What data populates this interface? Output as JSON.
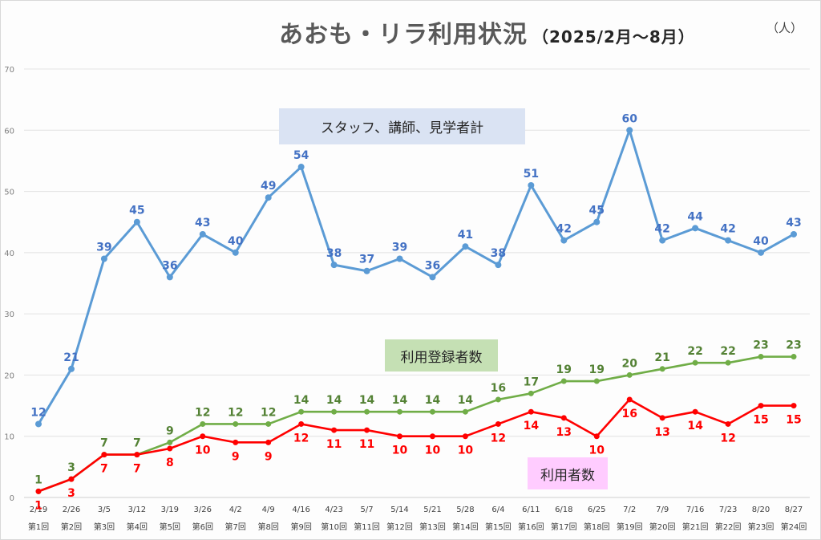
{
  "chart_data": {
    "type": "line",
    "title": "あおも・リラ利用状況",
    "subtitle": "（2025/2月～8月）",
    "unit_label": "（人）",
    "xlabel": "",
    "ylabel": "",
    "ylim": [
      0,
      70
    ],
    "yticks": [
      0,
      10,
      20,
      30,
      40,
      50,
      60,
      70
    ],
    "grid": true,
    "categories": [
      "2/19",
      "2/26",
      "3/5",
      "3/12",
      "3/19",
      "3/26",
      "4/2",
      "4/9",
      "4/16",
      "4/23",
      "5/7",
      "5/14",
      "5/21",
      "5/28",
      "6/4",
      "6/11",
      "6/18",
      "6/25",
      "7/2",
      "7/9",
      "7/16",
      "7/23",
      "8/20",
      "8/27"
    ],
    "sessions": [
      "第1回",
      "第2回",
      "第3回",
      "第4回",
      "第5回",
      "第6回",
      "第7回",
      "第8回",
      "第9回",
      "第10回",
      "第11回",
      "第12回",
      "第13回",
      "第14回",
      "第15回",
      "第16回",
      "第17回",
      "第18回",
      "第19回",
      "第20回",
      "第21回",
      "第22回",
      "第23回",
      "第24回"
    ],
    "series": [
      {
        "name": "スタッフ、講師、見学者計",
        "color": "#5b9bd5",
        "label_color": "#4472c4",
        "label_position": "above",
        "label_bg": "#dae3f3",
        "values": [
          12,
          21,
          39,
          45,
          36,
          43,
          40,
          49,
          54,
          38,
          37,
          39,
          36,
          41,
          38,
          51,
          42,
          45,
          60,
          42,
          44,
          42,
          40,
          43
        ]
      },
      {
        "name": "利用登録者数",
        "color": "#70ad47",
        "label_color": "#548235",
        "label_position": "above",
        "label_bg": "#c5e0b4",
        "values": [
          1,
          3,
          7,
          7,
          9,
          12,
          12,
          12,
          14,
          14,
          14,
          14,
          14,
          14,
          16,
          17,
          19,
          19,
          20,
          21,
          22,
          22,
          23,
          23
        ]
      },
      {
        "name": "利用者数",
        "color": "#ff0000",
        "label_color": "#ff0000",
        "label_position": "below",
        "label_bg": "#ffccff",
        "values": [
          1,
          3,
          7,
          7,
          8,
          10,
          9,
          9,
          12,
          11,
          11,
          10,
          10,
          10,
          12,
          14,
          13,
          10,
          16,
          13,
          14,
          12,
          15,
          15
        ]
      }
    ]
  }
}
